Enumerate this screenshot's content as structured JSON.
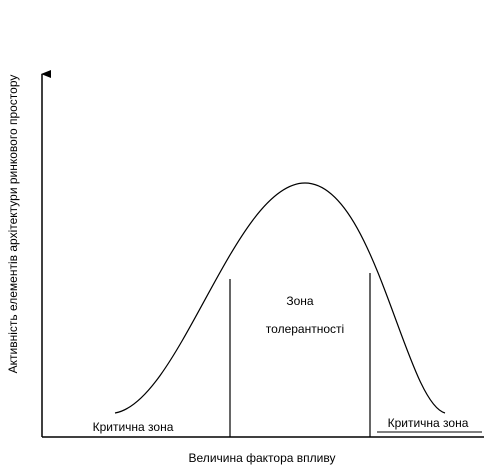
{
  "axes": {
    "y_label": "Активність елементів архітектури ринкового простору",
    "x_label": "Величина фактора впливу"
  },
  "zones": {
    "tolerance": [
      "Зона",
      "толерантності"
    ],
    "critical_left": "Критична зона",
    "critical_right": "Критична зона"
  }
}
